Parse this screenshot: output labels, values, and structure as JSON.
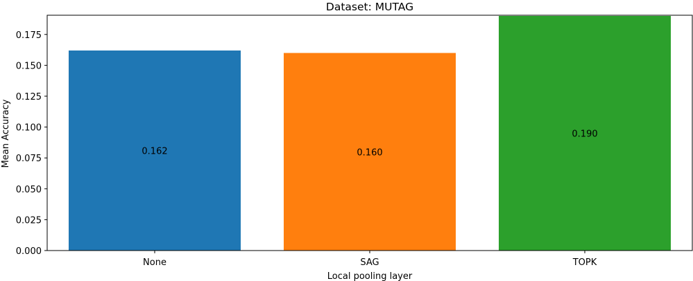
{
  "chart_data": {
    "type": "bar",
    "title": "Dataset: MUTAG",
    "xlabel": "Local pooling layer",
    "ylabel": "Mean Accuracy",
    "categories": [
      "None",
      "SAG",
      "TOPK"
    ],
    "values": [
      0.162,
      0.16,
      0.19
    ],
    "data_labels": [
      "0.162",
      "0.160",
      "0.190"
    ],
    "colors": [
      "#1f77b4",
      "#ff7f0e",
      "#2ca02c"
    ],
    "ylim": [
      0,
      0.19
    ],
    "yticks": [
      0.0,
      0.025,
      0.05,
      0.075,
      0.1,
      0.125,
      0.15,
      0.175
    ],
    "ytick_labels": [
      "0.000",
      "0.025",
      "0.050",
      "0.075",
      "0.100",
      "0.125",
      "0.150",
      "0.175"
    ],
    "grid": false,
    "legend": "none"
  }
}
